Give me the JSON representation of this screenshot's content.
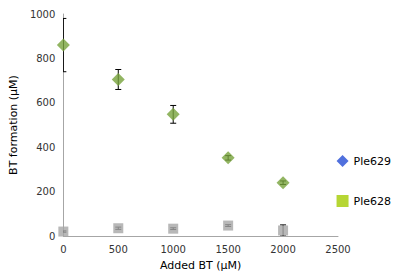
{
  "chart_data": {
    "type": "scatter",
    "x_label": "Added BT (μM)",
    "y_label": "BT formation (μM)",
    "x": [
      0,
      500,
      1000,
      1500,
      2000
    ],
    "series": [
      {
        "name": "Ple629",
        "color": "#77a33b",
        "marker": "diamond",
        "values": [
          860,
          705,
          548,
          352,
          240
        ],
        "errors": [
          120,
          45,
          40,
          10,
          8
        ]
      },
      {
        "name": "Ple628",
        "color": "#a6a6a6",
        "marker": "square",
        "values": [
          20,
          35,
          33,
          47,
          25
        ],
        "errors": [
          3,
          5,
          4,
          4,
          25
        ]
      }
    ],
    "xlim": [
      0,
      2500
    ],
    "xticks": [
      0,
      500,
      1000,
      1500,
      2000,
      2500
    ],
    "ylim": [
      0,
      1000
    ],
    "yticks": [
      0,
      200,
      400,
      600,
      800,
      1000
    ],
    "grid": false,
    "legend": "right"
  }
}
